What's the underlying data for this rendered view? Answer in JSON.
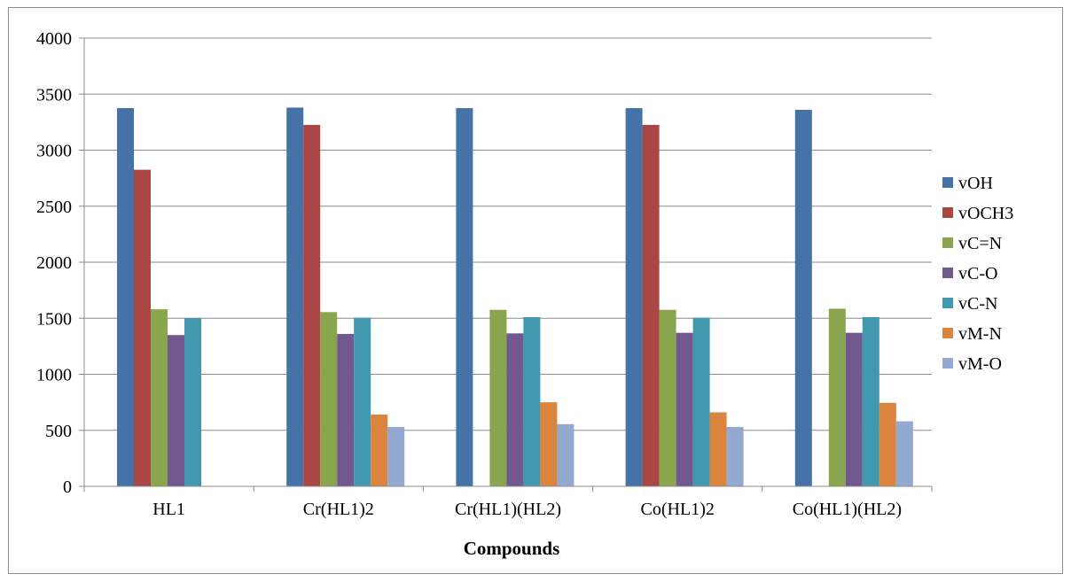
{
  "chart_data": {
    "type": "bar",
    "title": "",
    "xlabel": "Compounds",
    "ylabel": "",
    "ylim": [
      0,
      4000
    ],
    "yticks": [
      0,
      500,
      1000,
      1500,
      2000,
      2500,
      3000,
      3500,
      4000
    ],
    "grid": true,
    "legend_position": "right",
    "categories": [
      "HL1",
      "Cr(HL1)2",
      "Cr(HL1)(HL2)",
      "Co(HL1)2",
      "Co(HL1)(HL2)"
    ],
    "series": [
      {
        "name": "vOH",
        "color": "#4572A7",
        "values": [
          3375,
          3380,
          3375,
          3375,
          3360
        ]
      },
      {
        "name": "vOCH3",
        "color": "#AA4643",
        "values": [
          2825,
          3225,
          null,
          3225,
          null
        ]
      },
      {
        "name": "vC=N",
        "color": "#89A54E",
        "values": [
          1580,
          1555,
          1575,
          1575,
          1585
        ]
      },
      {
        "name": "vC-O",
        "color": "#71588F",
        "values": [
          1350,
          1360,
          1365,
          1370,
          1370
        ]
      },
      {
        "name": "vC-N",
        "color": "#4198AF",
        "values": [
          1500,
          1505,
          1510,
          1505,
          1510
        ]
      },
      {
        "name": "vM-N",
        "color": "#DB843D",
        "values": [
          null,
          640,
          750,
          660,
          745
        ]
      },
      {
        "name": "vM-O",
        "color": "#93A9CF",
        "values": [
          null,
          530,
          555,
          530,
          580
        ]
      }
    ]
  }
}
